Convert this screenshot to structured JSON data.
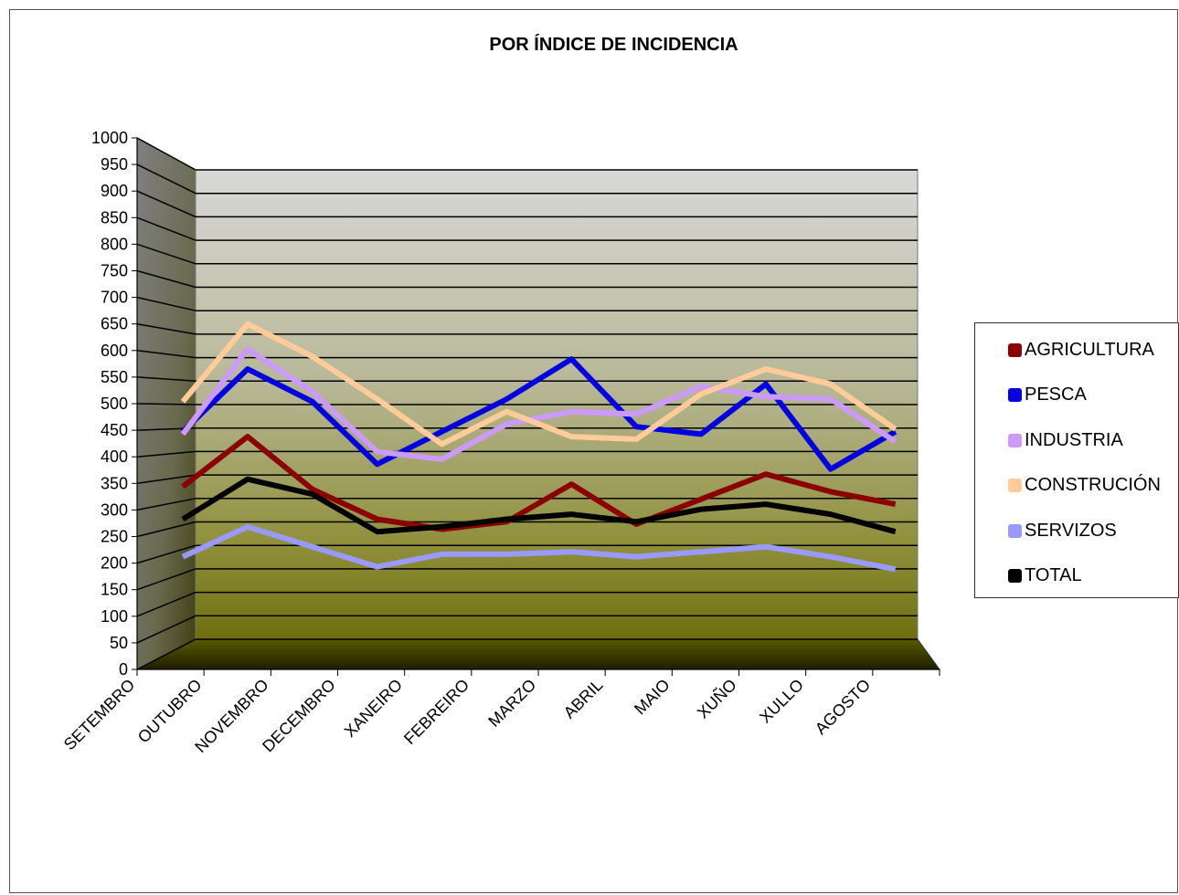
{
  "chart_data": {
    "type": "line",
    "title": "POR ÍNDICE DE INCIDENCIA",
    "xlabel": "",
    "ylabel": "",
    "ylim": [
      0,
      1000
    ],
    "ytick_step": 50,
    "grid": true,
    "legend_position": "right",
    "categories": [
      "SETEMBRO",
      "OUTUBRO",
      "NOVEMBRO",
      "DECEMBRO",
      "XANEIRO",
      "FEBREIRO",
      "MARZO",
      "ABRIL",
      "MAIO",
      "XUÑO",
      "XULLO",
      "AGOSTO"
    ],
    "series": [
      {
        "name": "AGRICULTURA",
        "color": "#8B0000",
        "values": [
          335,
          435,
          330,
          270,
          250,
          265,
          340,
          260,
          310,
          360,
          325,
          300
        ]
      },
      {
        "name": "PESCA",
        "color": "#0000E0",
        "values": [
          445,
          570,
          505,
          380,
          445,
          510,
          590,
          455,
          440,
          540,
          370,
          445
        ]
      },
      {
        "name": "INDUSTRIA",
        "color": "#CC99FF",
        "values": [
          440,
          610,
          525,
          405,
          390,
          460,
          485,
          480,
          535,
          515,
          510,
          425
        ]
      },
      {
        "name": "CONSTRUCIÓN",
        "color": "#FFCC99",
        "values": [
          505,
          660,
          595,
          510,
          420,
          485,
          435,
          430,
          520,
          570,
          540,
          450
        ]
      },
      {
        "name": "SERVIZOS",
        "color": "#9999FF",
        "values": [
          195,
          255,
          215,
          175,
          200,
          200,
          205,
          195,
          205,
          215,
          195,
          170
        ]
      },
      {
        "name": "TOTAL",
        "color": "#000000",
        "values": [
          270,
          350,
          320,
          245,
          255,
          270,
          280,
          265,
          290,
          300,
          280,
          245
        ]
      }
    ]
  }
}
